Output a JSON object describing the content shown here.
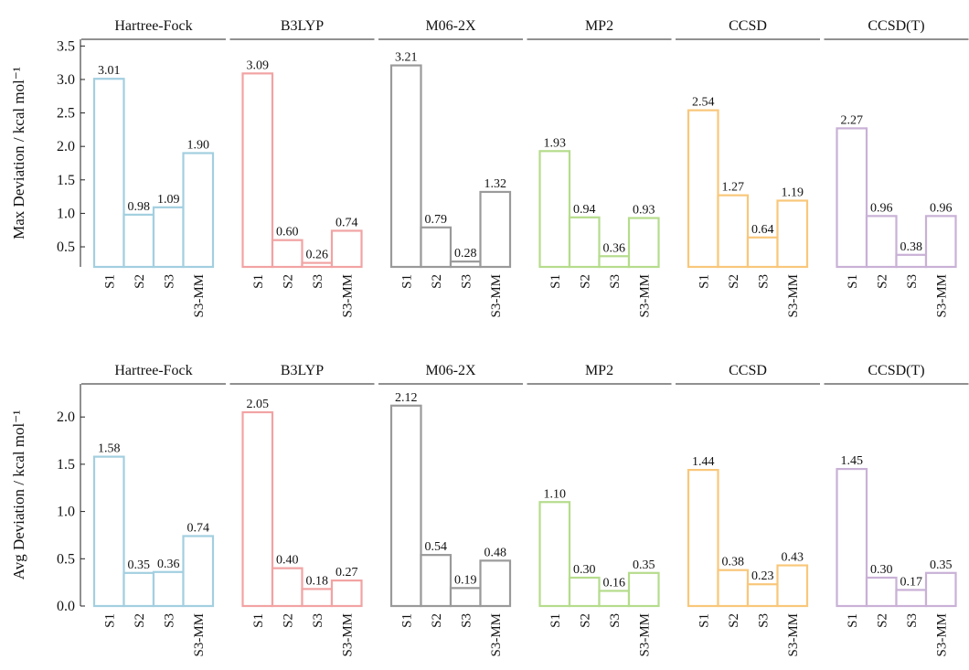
{
  "chart_data": [
    {
      "type": "bar",
      "ylabel": "Max Deviation / kcal mol⁻¹",
      "categories": [
        "S1",
        "S2",
        "S3",
        "S3-MM"
      ],
      "ylim": [
        0.2,
        3.6
      ],
      "yticks": [
        0.5,
        {
          "value": 1.0,
          "label": "1.0"
        },
        1.5,
        {
          "value": 2.0,
          "label": "2.0"
        },
        2.5,
        {
          "value": 3.0,
          "label": "3.0"
        },
        3.5
      ],
      "series": [
        {
          "name": "Hartree-Fock",
          "color": "#a3cfe0",
          "values": [
            3.01,
            0.98,
            1.09,
            1.9
          ],
          "value_labels": [
            "3.01",
            "0.98",
            "1.09",
            "1.90"
          ]
        },
        {
          "name": "B3LYP",
          "color": "#f2a3a3",
          "values": [
            3.09,
            0.6,
            0.26,
            0.74
          ],
          "value_labels": [
            "3.09",
            "0.60",
            "0.26",
            "0.74"
          ]
        },
        {
          "name": "M06-2X",
          "color": "#9a9a9a",
          "values": [
            3.21,
            0.79,
            0.28,
            1.32
          ],
          "value_labels": [
            "3.21",
            "0.79",
            "0.28",
            "1.32"
          ]
        },
        {
          "name": "MP2",
          "color": "#b5dc8c",
          "values": [
            1.93,
            0.94,
            0.36,
            0.93
          ],
          "value_labels": [
            "1.93",
            "0.94",
            "0.36",
            "0.93"
          ]
        },
        {
          "name": "CCSD",
          "color": "#f9c77a",
          "values": [
            2.54,
            1.27,
            0.64,
            1.19
          ],
          "value_labels": [
            "2.54",
            "1.27",
            "0.64",
            "1.19"
          ]
        },
        {
          "name": "CCSD(T)",
          "color": "#c9b1d6",
          "values": [
            2.27,
            0.96,
            0.38,
            0.96
          ],
          "value_labels": [
            "2.27",
            "0.96",
            "0.38",
            "0.96"
          ]
        }
      ]
    },
    {
      "type": "bar",
      "ylabel": "Avg Deviation / kcal mol⁻¹",
      "categories": [
        "S1",
        "S2",
        "S3",
        "S3-MM"
      ],
      "ylim": [
        0,
        2.35
      ],
      "yticks": [
        {
          "value": 0.0,
          "label": "0.0"
        },
        0.5,
        {
          "value": 1.0,
          "label": "1.0"
        },
        1.5,
        {
          "value": 2.0,
          "label": "2.0"
        }
      ],
      "series": [
        {
          "name": "Hartree-Fock",
          "color": "#a3cfe0",
          "values": [
            1.58,
            0.35,
            0.36,
            0.74
          ],
          "value_labels": [
            "1.58",
            "0.35",
            "0.36",
            "0.74"
          ]
        },
        {
          "name": "B3LYP",
          "color": "#f2a3a3",
          "values": [
            2.05,
            0.4,
            0.18,
            0.27
          ],
          "value_labels": [
            "2.05",
            "0.40",
            "0.18",
            "0.27"
          ]
        },
        {
          "name": "M06-2X",
          "color": "#9a9a9a",
          "values": [
            2.12,
            0.54,
            0.19,
            0.48
          ],
          "value_labels": [
            "2.12",
            "0.54",
            "0.19",
            "0.48"
          ]
        },
        {
          "name": "MP2",
          "color": "#b5dc8c",
          "values": [
            1.1,
            0.3,
            0.16,
            0.35
          ],
          "value_labels": [
            "1.10",
            "0.30",
            "0.16",
            "0.35"
          ]
        },
        {
          "name": "CCSD",
          "color": "#f9c77a",
          "values": [
            1.44,
            0.38,
            0.23,
            0.43
          ],
          "value_labels": [
            "1.44",
            "0.38",
            "0.23",
            "0.43"
          ]
        },
        {
          "name": "CCSD(T)",
          "color": "#c9b1d6",
          "values": [
            1.45,
            0.3,
            0.17,
            0.35
          ],
          "value_labels": [
            "1.45",
            "0.30",
            "0.17",
            "0.35"
          ]
        }
      ]
    }
  ]
}
